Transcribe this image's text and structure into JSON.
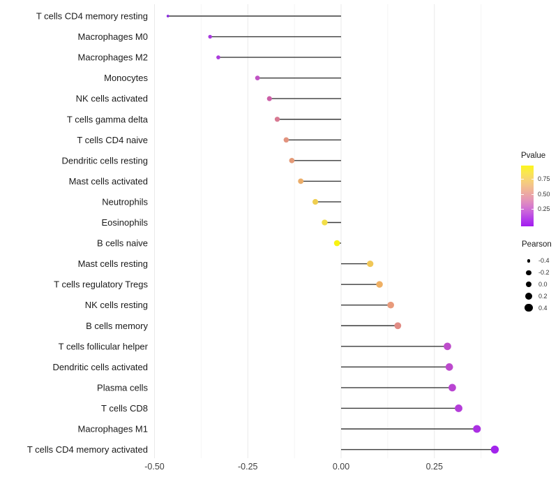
{
  "chart_data": {
    "type": "scatter",
    "style": "lollipop",
    "title": "",
    "xlabel": "",
    "ylabel": "",
    "xlim": [
      -0.51,
      0.46
    ],
    "grid": "major+minor vertical gridlines, white background",
    "x_tick_values": [
      -0.5,
      -0.25,
      0,
      0.25
    ],
    "x_tick_labels": [
      "-0.50",
      "-0.25",
      "0.00",
      "0.25"
    ],
    "x_minor_tick_values": [
      -0.375,
      -0.125,
      0.125,
      0.375
    ],
    "rows": [
      {
        "label": "T cells CD4 memory resting",
        "pearson": -0.464,
        "color": "#8929DD"
      },
      {
        "label": "Macrophages M0",
        "pearson": -0.351,
        "color": "#A838DE"
      },
      {
        "label": "Macrophages M2",
        "pearson": -0.329,
        "color": "#AB3CDC"
      },
      {
        "label": "Monocytes",
        "pearson": -0.224,
        "color": "#C053C4"
      },
      {
        "label": "NK cells activated",
        "pearson": -0.192,
        "color": "#CC5FA7"
      },
      {
        "label": "T cells gamma delta",
        "pearson": -0.171,
        "color": "#D87992"
      },
      {
        "label": "T cells CD4 naive",
        "pearson": -0.147,
        "color": "#E2937E"
      },
      {
        "label": "Dendritic cells resting",
        "pearson": -0.132,
        "color": "#E49A77"
      },
      {
        "label": "Mast cells activated",
        "pearson": -0.108,
        "color": "#EBAD69"
      },
      {
        "label": "Neutrophils",
        "pearson": -0.069,
        "color": "#EFCE50"
      },
      {
        "label": "Eosinophils",
        "pearson": -0.044,
        "color": "#F2DE48"
      },
      {
        "label": "B cells naive",
        "pearson": -0.011,
        "color": "#F8F312"
      },
      {
        "label": "Mast cells resting",
        "pearson": 0.078,
        "color": "#F0C757"
      },
      {
        "label": "T cells regulatory  Tregs",
        "pearson": 0.103,
        "color": "#EFB064"
      },
      {
        "label": "NK cells resting",
        "pearson": 0.133,
        "color": "#E89A7B"
      },
      {
        "label": "B cells memory",
        "pearson": 0.152,
        "color": "#E18C85"
      },
      {
        "label": "T cells follicular helper",
        "pearson": 0.285,
        "color": "#BD4CCA"
      },
      {
        "label": "Dendritic cells activated",
        "pearson": 0.29,
        "color": "#BC49CD"
      },
      {
        "label": "Plasma cells",
        "pearson": 0.298,
        "color": "#B944D2"
      },
      {
        "label": "T cells CD8",
        "pearson": 0.315,
        "color": "#B43DD9"
      },
      {
        "label": "Macrophages M1",
        "pearson": 0.364,
        "color": "#AB30E3"
      },
      {
        "label": "T cells CD4 memory activated",
        "pearson": 0.412,
        "color": "#A224EC"
      }
    ],
    "legends": {
      "pvalue": {
        "title": "Pvalue",
        "tick_labels": [
          "0.75",
          "0.50",
          "0.25"
        ],
        "tick_values": [
          0.75,
          0.5,
          0.25
        ],
        "gradient_top_to_bottom": [
          "#FCF51B",
          "#FAE74E",
          "#F7D571",
          "#F3C28B",
          "#EDAC9F",
          "#E597B6",
          "#D77DCC",
          "#C65EDE",
          "#B23BEA",
          "#A21BEF"
        ]
      },
      "pearson": {
        "title": "Pearson",
        "entries": [
          {
            "label": "-0.4",
            "value": -0.4
          },
          {
            "label": "-0.2",
            "value": -0.2
          },
          {
            "label": "0.0",
            "value": 0.0
          },
          {
            "label": "0.2",
            "value": 0.2
          },
          {
            "label": "0.4",
            "value": 0.4
          }
        ]
      }
    },
    "colors": {
      "stem": "#3A3A3A",
      "axis_text": "#404040",
      "category_label": "#1A1A1A",
      "grid_major": "#E9E9E9",
      "grid_minor": "#F4F4F4",
      "background": "#FFFFFF"
    }
  }
}
